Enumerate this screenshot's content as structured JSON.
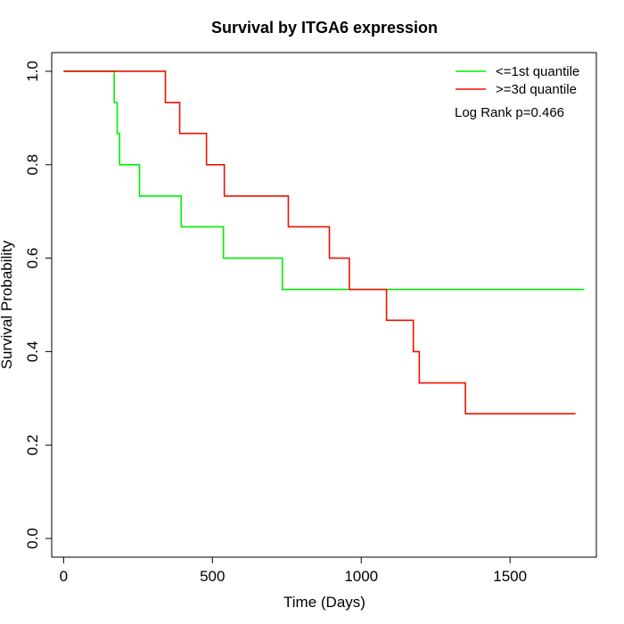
{
  "chart_data": {
    "type": "line",
    "title": "Survival by ITGA6 expression",
    "xlabel": "Time (Days)",
    "ylabel": "Survival Probability",
    "xlim": [
      -40,
      1790
    ],
    "ylim": [
      -0.04,
      1.04
    ],
    "xticks": [
      0,
      500,
      1000,
      1500
    ],
    "yticks": [
      0.0,
      0.2,
      0.4,
      0.6,
      0.8,
      1.0
    ],
    "xtick_labels": [
      "0",
      "500",
      "1000",
      "1500"
    ],
    "ytick_labels": [
      "0.0",
      "0.2",
      "0.4",
      "0.6",
      "0.8",
      "1.0"
    ],
    "grid": false,
    "legend_position": "top-right",
    "series": [
      {
        "name": "<=1st quantile",
        "color": "#00ee00",
        "step": true,
        "x": [
          0,
          170,
          180,
          188,
          255,
          395,
          537,
          735,
          1750
        ],
        "y": [
          1.0,
          0.933,
          0.867,
          0.8,
          0.733,
          0.667,
          0.6,
          0.533,
          0.533
        ]
      },
      {
        "name": ">=3d quantile",
        "color": "#ee1100",
        "step": true,
        "x": [
          0,
          342,
          390,
          480,
          540,
          755,
          893,
          960,
          1085,
          1175,
          1195,
          1350,
          1720
        ],
        "y": [
          1.0,
          0.933,
          0.867,
          0.8,
          0.733,
          0.667,
          0.6,
          0.533,
          0.467,
          0.4,
          0.333,
          0.267,
          0.267
        ]
      }
    ],
    "annotations": [
      {
        "text": "Log Rank p=0.466",
        "position": "top-right"
      }
    ]
  }
}
